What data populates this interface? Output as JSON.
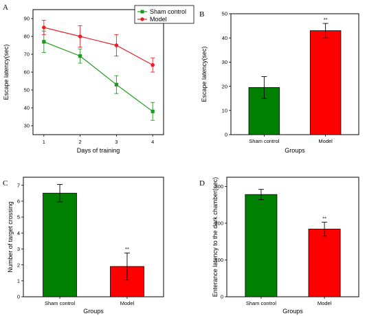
{
  "chart_data": [
    {
      "panel": "A",
      "type": "line",
      "x": [
        1,
        2,
        3,
        4
      ],
      "xlabel": "Days of training",
      "ylabel": "Escape latency(sec)",
      "xlim": [
        0.7,
        4.3
      ],
      "ylim": [
        25,
        95
      ],
      "xticks": [
        1,
        2,
        3,
        4
      ],
      "yticks": [
        30,
        40,
        50,
        60,
        70,
        80,
        90
      ],
      "legend": "top-right",
      "series": [
        {
          "name": "Sham control",
          "values": [
            77,
            69,
            53,
            38
          ],
          "errors": [
            6,
            4,
            5,
            5
          ],
          "color": "#1a9a1a",
          "marker": "square"
        },
        {
          "name": "Model",
          "values": [
            85,
            80,
            75,
            64
          ],
          "errors": [
            4,
            6,
            6,
            4
          ],
          "color": "#e8202a",
          "marker": "circle"
        }
      ]
    },
    {
      "panel": "B",
      "type": "bar",
      "categories": [
        "Sham control",
        "Model"
      ],
      "values": [
        19.5,
        43
      ],
      "errors": [
        4.5,
        3
      ],
      "colors": [
        "#008000",
        "#ff0000"
      ],
      "significance": [
        "",
        "**"
      ],
      "xlabel": "Groups",
      "ylabel": "Escape latency(sec)",
      "ylim": [
        0,
        50
      ],
      "yticks": [
        0,
        10,
        20,
        30,
        40,
        50
      ]
    },
    {
      "panel": "C",
      "type": "bar",
      "categories": [
        "Sham control",
        "Model"
      ],
      "values": [
        6.5,
        1.9
      ],
      "errors": [
        0.55,
        0.85
      ],
      "colors": [
        "#008000",
        "#ff0000"
      ],
      "significance": [
        "",
        "**"
      ],
      "xlabel": "Groups",
      "ylabel": "Number of target crossing",
      "ylim": [
        0,
        7.5
      ],
      "yticks": [
        0,
        1,
        2,
        3,
        4,
        5,
        6,
        7
      ]
    },
    {
      "panel": "D",
      "type": "bar",
      "categories": [
        "Sham control",
        "Model"
      ],
      "values": [
        278,
        184
      ],
      "errors": [
        14,
        19
      ],
      "colors": [
        "#008000",
        "#ff0000"
      ],
      "significance": [
        "",
        "**"
      ],
      "xlabel": "Groups",
      "ylabel": "Enterance latency to the dark chamber(sec)",
      "ylim": [
        0,
        325
      ],
      "yticks": [
        0,
        100,
        200,
        300
      ]
    }
  ]
}
